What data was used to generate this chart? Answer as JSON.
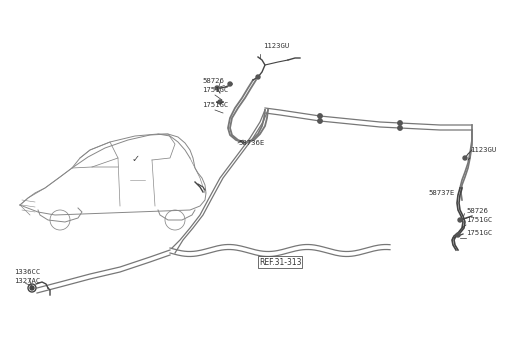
{
  "background_color": "#ffffff",
  "line_color": "#777777",
  "dark_color": "#444444",
  "text_color": "#333333",
  "labels": {
    "top_1123GU": "1123GU",
    "top_58726": "58726",
    "top_1751GC_1": "1751GC",
    "top_1751GC_2": "1751GC",
    "top_58736E": "58736E",
    "right_1123GU": "1123GU",
    "right_58737E": "58737E",
    "right_58726": "58726",
    "right_1751GC_1": "1751GC",
    "right_1751GC_2": "1751GC",
    "bot_1336CC": "1336CC",
    "bot_1327AC": "1327AC",
    "ref": "REF.31-313"
  }
}
